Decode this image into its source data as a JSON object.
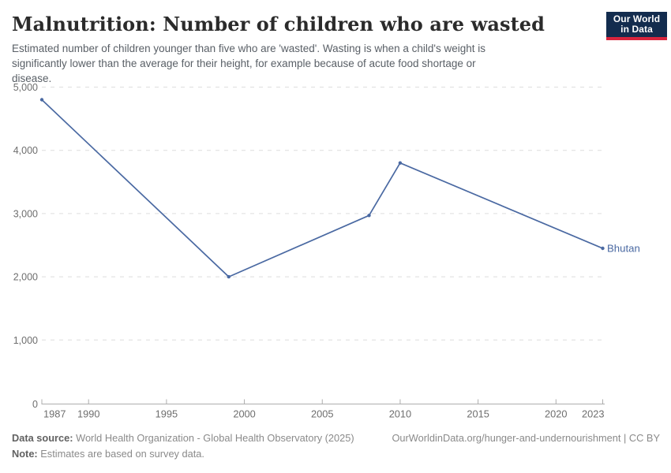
{
  "header": {
    "title": "Malnutrition: Number of children who are wasted",
    "subtitle": "Estimated number of children younger than five who are 'wasted'. Wasting is when a child's weight is significantly lower than the average for their height, for example because of acute food shortage or disease.",
    "logo_line1": "Our World",
    "logo_line2": "in Data"
  },
  "chart_data": {
    "type": "line",
    "title": "Malnutrition: Number of children who are wasted",
    "xlabel": "",
    "ylabel": "",
    "xlim": [
      1987,
      2023
    ],
    "ylim": [
      0,
      5000
    ],
    "x_ticks": [
      1987,
      1990,
      1995,
      2000,
      2005,
      2010,
      2015,
      2020,
      2023
    ],
    "y_ticks": [
      0,
      1000,
      2000,
      3000,
      4000,
      5000
    ],
    "grid": "horizontal-dashed",
    "legend_position": "end-of-line-label",
    "series": [
      {
        "name": "Bhutan",
        "color": "#4a69a2",
        "points": [
          [
            1987,
            4800
          ],
          [
            1999,
            2000
          ],
          [
            2008,
            2970
          ],
          [
            2010,
            3800
          ],
          [
            2023,
            2450
          ]
        ]
      }
    ]
  },
  "colors": {
    "line": "#4a69a2",
    "grid": "#dedede",
    "axis": "#adadad",
    "tick_label": "#6e6e6e",
    "logo_bg": "#132c4e",
    "logo_accent": "#d8243d"
  },
  "footer": {
    "source_label": "Data source:",
    "source_text": "World Health Organization - Global Health Observatory (2025)",
    "note_label": "Note:",
    "note_text": "Estimates are based on survey data.",
    "link": "OurWorldinData.org/hunger-and-undernourishment | CC BY"
  }
}
